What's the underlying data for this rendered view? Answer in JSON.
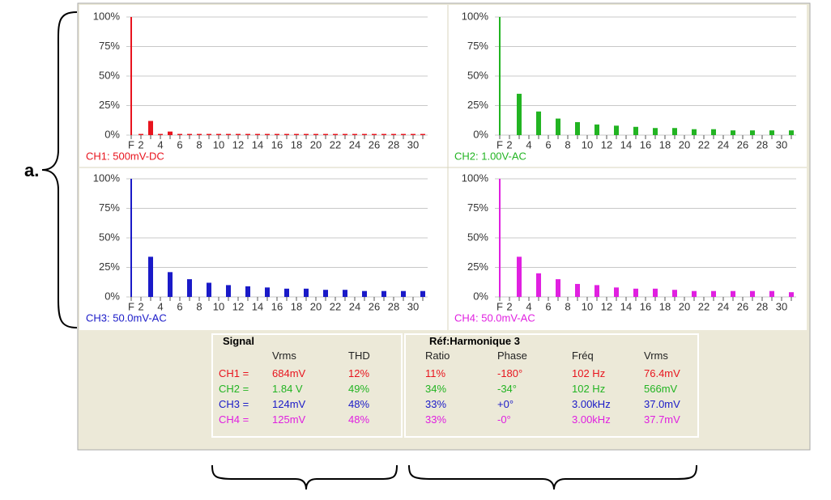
{
  "label": "a.",
  "chart_data": [
    {
      "type": "bar",
      "channel_label": "CH1: 500mV-DC",
      "color": "#e8141e",
      "categories": [
        "F",
        "2",
        null,
        "4",
        null,
        "6",
        null,
        "8",
        null,
        "10",
        null,
        "12",
        null,
        "14",
        null,
        "16",
        null,
        "18",
        null,
        "20",
        null,
        "22",
        null,
        "24",
        null,
        "26",
        null,
        "28",
        null,
        "30",
        null
      ],
      "values": [
        100,
        1,
        12,
        1,
        3,
        1,
        1,
        1,
        1,
        1,
        1,
        1,
        1,
        1,
        1,
        1,
        1,
        1,
        1,
        1,
        1,
        1,
        1,
        1,
        1,
        1,
        1,
        1,
        1,
        1,
        1
      ],
      "ylim": [
        0,
        100
      ],
      "yticks": [
        {
          "value": 0,
          "label": "0%"
        },
        {
          "value": 25,
          "label": "25%"
        },
        {
          "value": 50,
          "label": "50%"
        },
        {
          "value": 75,
          "label": "75%"
        },
        {
          "value": 100,
          "label": "100%"
        }
      ],
      "grid": true
    },
    {
      "type": "bar",
      "channel_label": "CH2: 1.00V-AC",
      "color": "#22b422",
      "categories": [
        "F",
        "2",
        null,
        "4",
        null,
        "6",
        null,
        "8",
        null,
        "10",
        null,
        "12",
        null,
        "14",
        null,
        "16",
        null,
        "18",
        null,
        "20",
        null,
        "22",
        null,
        "24",
        null,
        "26",
        null,
        "28",
        null,
        "30",
        null
      ],
      "values": [
        100,
        0,
        35,
        0,
        20,
        0,
        14,
        0,
        11,
        0,
        9,
        0,
        8,
        0,
        7,
        0,
        6,
        0,
        6,
        0,
        5,
        0,
        5,
        0,
        4,
        0,
        4,
        0,
        4,
        0,
        4
      ],
      "ylim": [
        0,
        100
      ],
      "yticks": [
        {
          "value": 0,
          "label": "0%"
        },
        {
          "value": 25,
          "label": "25%"
        },
        {
          "value": 50,
          "label": "50%"
        },
        {
          "value": 75,
          "label": "75%"
        },
        {
          "value": 100,
          "label": "100%"
        }
      ],
      "grid": true
    },
    {
      "type": "bar",
      "channel_label": "CH3: 50.0mV-AC",
      "color": "#1a1ac8",
      "categories": [
        "F",
        "2",
        null,
        "4",
        null,
        "6",
        null,
        "8",
        null,
        "10",
        null,
        "12",
        null,
        "14",
        null,
        "16",
        null,
        "18",
        null,
        "20",
        null,
        "22",
        null,
        "24",
        null,
        "26",
        null,
        "28",
        null,
        "30",
        null
      ],
      "values": [
        100,
        0,
        34,
        0,
        21,
        0,
        15,
        0,
        12,
        0,
        10,
        0,
        9,
        0,
        8,
        0,
        7,
        0,
        7,
        0,
        6,
        0,
        6,
        0,
        5,
        0,
        5,
        0,
        5,
        0,
        5
      ],
      "ylim": [
        0,
        100
      ],
      "yticks": [
        {
          "value": 0,
          "label": "0%"
        },
        {
          "value": 25,
          "label": "25%"
        },
        {
          "value": 50,
          "label": "50%"
        },
        {
          "value": 75,
          "label": "75%"
        },
        {
          "value": 100,
          "label": "100%"
        }
      ],
      "grid": true
    },
    {
      "type": "bar",
      "channel_label": "CH4: 50.0mV-AC",
      "color": "#e020e0",
      "categories": [
        "F",
        "2",
        null,
        "4",
        null,
        "6",
        null,
        "8",
        null,
        "10",
        null,
        "12",
        null,
        "14",
        null,
        "16",
        null,
        "18",
        null,
        "20",
        null,
        "22",
        null,
        "24",
        null,
        "26",
        null,
        "28",
        null,
        "30",
        null
      ],
      "values": [
        100,
        0,
        34,
        0,
        20,
        0,
        15,
        0,
        11,
        0,
        10,
        0,
        8,
        0,
        7,
        0,
        7,
        0,
        6,
        0,
        5,
        0,
        5,
        0,
        5,
        0,
        5,
        0,
        5,
        0,
        4
      ],
      "ylim": [
        0,
        100
      ],
      "yticks": [
        {
          "value": 0,
          "label": "0%"
        },
        {
          "value": 25,
          "label": "25%"
        },
        {
          "value": 50,
          "label": "50%"
        },
        {
          "value": 75,
          "label": "75%"
        },
        {
          "value": 100,
          "label": "100%"
        }
      ],
      "grid": true
    }
  ],
  "signal": {
    "title": "Signal",
    "columns": [
      "Vrms",
      "THD"
    ],
    "rows": [
      [
        "CH1 =",
        "684mV",
        "12%"
      ],
      [
        "CH2 =",
        "1.84 V",
        "49%"
      ],
      [
        "CH3 =",
        "124mV",
        "48%"
      ],
      [
        "CH4 =",
        "125mV",
        "48%"
      ]
    ]
  },
  "reference": {
    "title": "Réf:Harmonique 3",
    "columns": [
      "Ratio",
      "Phase",
      "Fréq",
      "Vrms"
    ],
    "rows": [
      [
        "11%",
        "-180°",
        "102 Hz",
        "76.4mV"
      ],
      [
        "34%",
        "-34°",
        "102 Hz",
        "566mV"
      ],
      [
        "33%",
        "+0°",
        "3.00kHz",
        "37.0mV"
      ],
      [
        "33%",
        "-0°",
        "3.00kHz",
        "37.7mV"
      ]
    ]
  }
}
